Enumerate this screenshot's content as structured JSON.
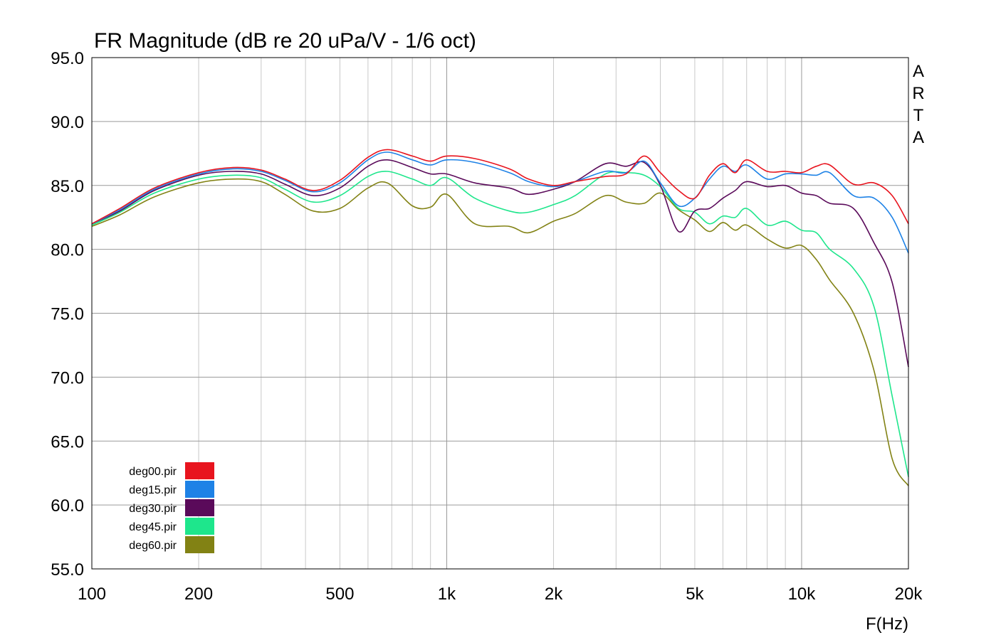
{
  "chart_data": {
    "type": "line",
    "title": "FR Magnitude (dB re 20 uPa/V - 1/6 oct)",
    "xlabel": "F(Hz)",
    "ylabel": "",
    "x_scale": "log",
    "xlim": [
      100,
      20000
    ],
    "ylim": [
      55,
      95
    ],
    "grid": true,
    "legend_position": "bottom-left",
    "brand_letters": [
      "A",
      "R",
      "T",
      "A"
    ],
    "x_ticks": [
      {
        "value": 100,
        "label": "100"
      },
      {
        "value": 200,
        "label": "200"
      },
      {
        "value": 500,
        "label": "500"
      },
      {
        "value": 1000,
        "label": "1k"
      },
      {
        "value": 2000,
        "label": "2k"
      },
      {
        "value": 5000,
        "label": "5k"
      },
      {
        "value": 10000,
        "label": "10k"
      },
      {
        "value": 20000,
        "label": "20k"
      }
    ],
    "y_ticks": [
      {
        "value": 95,
        "label": "95.0"
      },
      {
        "value": 90,
        "label": "90.0"
      },
      {
        "value": 85,
        "label": "85.0"
      },
      {
        "value": 80,
        "label": "80.0"
      },
      {
        "value": 75,
        "label": "75.0"
      },
      {
        "value": 70,
        "label": "70.0"
      },
      {
        "value": 65,
        "label": "65.0"
      },
      {
        "value": 60,
        "label": "60.0"
      },
      {
        "value": 55,
        "label": "55.0"
      }
    ],
    "x": [
      100,
      120,
      150,
      200,
      250,
      300,
      350,
      420,
      500,
      600,
      680,
      800,
      900,
      1000,
      1200,
      1500,
      1700,
      2000,
      2300,
      2800,
      3200,
      3600,
      4000,
      4500,
      5000,
      5500,
      6000,
      6500,
      7000,
      8000,
      9000,
      10000,
      11000,
      12000,
      14000,
      16000,
      18000,
      20000
    ],
    "series": [
      {
        "name": "deg00.pir",
        "color": "#e8141e",
        "values": [
          82.0,
          83.2,
          84.8,
          86.0,
          86.4,
          86.2,
          85.5,
          84.6,
          85.4,
          87.2,
          87.8,
          87.3,
          86.9,
          87.3,
          87.1,
          86.3,
          85.5,
          85.0,
          85.3,
          85.7,
          85.9,
          87.3,
          86.0,
          84.6,
          84.0,
          85.8,
          86.7,
          86.0,
          87.0,
          86.1,
          86.1,
          86.0,
          86.5,
          86.6,
          85.1,
          85.2,
          84.2,
          82.0
        ]
      },
      {
        "name": "deg15.pir",
        "color": "#1e82e6",
        "values": [
          82.0,
          83.1,
          84.7,
          85.9,
          86.3,
          86.1,
          85.4,
          84.5,
          85.2,
          87.0,
          87.6,
          87.0,
          86.6,
          87.0,
          86.8,
          86.0,
          85.3,
          84.9,
          85.3,
          86.1,
          86.0,
          86.9,
          85.2,
          83.4,
          84.0,
          85.5,
          86.5,
          86.1,
          86.6,
          85.5,
          85.9,
          85.9,
          85.8,
          86.0,
          84.2,
          84.0,
          82.5,
          79.7
        ]
      },
      {
        "name": "deg30.pir",
        "color": "#5a0a5a",
        "values": [
          82.0,
          83.0,
          84.6,
          85.8,
          86.1,
          85.9,
          85.1,
          84.2,
          84.8,
          86.5,
          87.0,
          86.4,
          85.9,
          85.9,
          85.2,
          84.8,
          84.3,
          84.7,
          85.3,
          86.7,
          86.5,
          86.8,
          85.0,
          81.4,
          83.0,
          83.2,
          84.0,
          84.6,
          85.3,
          84.9,
          85.0,
          84.4,
          84.2,
          83.6,
          83.2,
          80.5,
          77.4,
          70.8
        ]
      },
      {
        "name": "deg45.pir",
        "color": "#1ee68c",
        "values": [
          81.9,
          82.9,
          84.4,
          85.5,
          85.8,
          85.6,
          84.7,
          83.7,
          84.2,
          85.7,
          86.1,
          85.5,
          85.0,
          85.6,
          84.0,
          83.0,
          82.9,
          83.5,
          84.2,
          85.9,
          86.0,
          85.8,
          84.9,
          83.2,
          82.9,
          82.0,
          82.6,
          82.5,
          83.2,
          81.9,
          82.2,
          81.5,
          81.3,
          80.0,
          78.5,
          75.5,
          68.5,
          62.2
        ]
      },
      {
        "name": "deg60.pir",
        "color": "#828214",
        "values": [
          81.8,
          82.7,
          84.1,
          85.2,
          85.5,
          85.3,
          84.3,
          83.0,
          83.2,
          84.8,
          85.2,
          83.4,
          83.3,
          84.3,
          82.0,
          81.8,
          81.3,
          82.2,
          82.8,
          84.2,
          83.7,
          83.6,
          84.4,
          83.1,
          82.3,
          81.4,
          82.1,
          81.5,
          81.9,
          80.8,
          80.1,
          80.3,
          79.2,
          77.6,
          75.0,
          70.5,
          63.6,
          61.5
        ]
      }
    ]
  }
}
